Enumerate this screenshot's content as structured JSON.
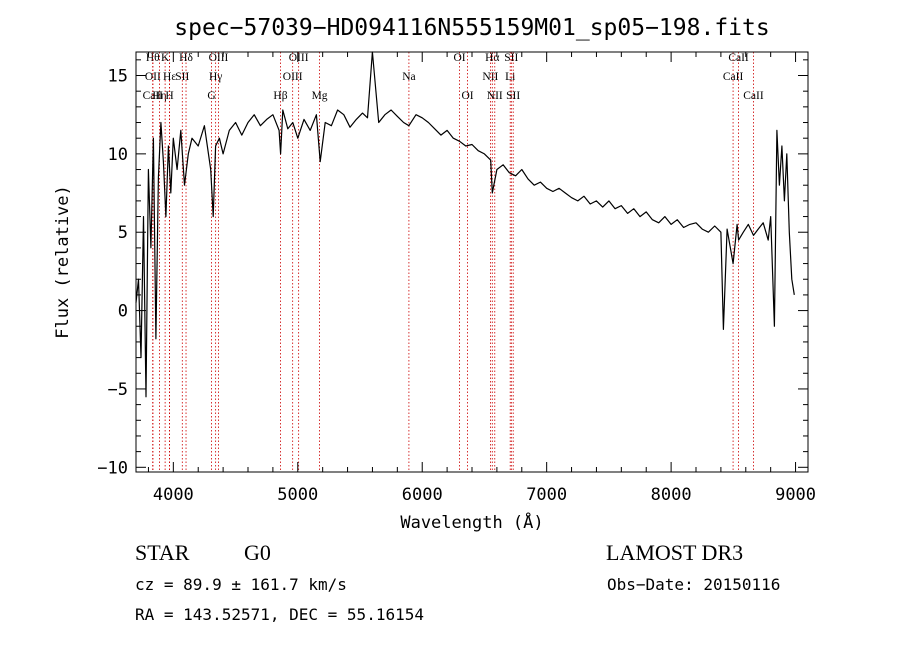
{
  "chart_data": {
    "type": "line",
    "title": "spec−57039−HD094116N555159M01_sp05−198.fits",
    "xlabel": "Wavelength (Å)",
    "ylabel": "Flux (relative)",
    "xlim": [
      3700,
      9100
    ],
    "ylim": [
      -10.3,
      16.5
    ],
    "xticks": [
      4000,
      5000,
      6000,
      7000,
      8000,
      9000
    ],
    "yticks": [
      -10,
      -5,
      0,
      5,
      10,
      15
    ],
    "ytick_labels": [
      "−10",
      "−5",
      "0",
      "5",
      "10",
      "15"
    ],
    "grid": false,
    "series": [
      {
        "name": "flux",
        "x": [
          3700,
          3720,
          3740,
          3760,
          3780,
          3800,
          3820,
          3840,
          3860,
          3880,
          3900,
          3920,
          3940,
          3960,
          3980,
          4000,
          4030,
          4060,
          4090,
          4120,
          4150,
          4200,
          4250,
          4300,
          4320,
          4340,
          4370,
          4400,
          4450,
          4500,
          4550,
          4600,
          4650,
          4700,
          4750,
          4800,
          4850,
          4862,
          4880,
          4920,
          4960,
          5000,
          5050,
          5100,
          5150,
          5180,
          5220,
          5270,
          5320,
          5370,
          5420,
          5470,
          5520,
          5560,
          5600,
          5650,
          5700,
          5750,
          5800,
          5850,
          5893,
          5950,
          6000,
          6050,
          6100,
          6150,
          6200,
          6250,
          6300,
          6350,
          6400,
          6450,
          6500,
          6550,
          6563,
          6600,
          6650,
          6700,
          6750,
          6800,
          6850,
          6900,
          6950,
          7000,
          7050,
          7100,
          7150,
          7200,
          7250,
          7300,
          7350,
          7400,
          7450,
          7500,
          7550,
          7600,
          7650,
          7700,
          7750,
          7800,
          7850,
          7900,
          7950,
          8000,
          8050,
          8100,
          8150,
          8200,
          8250,
          8300,
          8350,
          8400,
          8420,
          8450,
          8498,
          8530,
          8542,
          8580,
          8620,
          8662,
          8700,
          8740,
          8780,
          8800,
          8830,
          8850,
          8870,
          8890,
          8910,
          8930,
          8950,
          8970,
          8990
        ],
        "y": [
          0.5,
          2.0,
          -3.0,
          6.0,
          -5.5,
          9.0,
          4.0,
          11.0,
          -1.8,
          8.5,
          12.0,
          9.5,
          6.0,
          10.5,
          7.5,
          11.0,
          9.0,
          11.5,
          8.0,
          10.0,
          11.0,
          10.5,
          11.8,
          9.0,
          6.0,
          10.5,
          11.0,
          10.0,
          11.5,
          12.0,
          11.2,
          12.0,
          12.5,
          11.8,
          12.2,
          12.5,
          11.5,
          10.0,
          12.8,
          11.6,
          12.0,
          11.0,
          12.2,
          11.5,
          12.5,
          9.5,
          12.0,
          11.8,
          12.8,
          12.5,
          11.7,
          12.2,
          12.6,
          12.3,
          16.5,
          12.0,
          12.5,
          12.8,
          12.4,
          12.0,
          11.8,
          12.5,
          12.3,
          12.0,
          11.6,
          11.2,
          11.5,
          11.0,
          10.8,
          10.5,
          10.6,
          10.2,
          10.0,
          9.6,
          7.5,
          9.0,
          9.3,
          8.8,
          8.6,
          9.0,
          8.4,
          8.0,
          8.2,
          7.8,
          7.6,
          7.8,
          7.5,
          7.2,
          7.0,
          7.3,
          6.8,
          7.0,
          6.6,
          7.0,
          6.5,
          6.7,
          6.2,
          6.5,
          6.0,
          6.3,
          5.8,
          5.6,
          6.0,
          5.5,
          5.8,
          5.3,
          5.5,
          5.6,
          5.2,
          5.0,
          5.4,
          5.0,
          -1.2,
          5.2,
          3.0,
          5.5,
          4.5,
          5.0,
          5.5,
          4.8,
          5.2,
          5.6,
          4.5,
          6.0,
          -1.0,
          11.5,
          8.0,
          10.5,
          7.0,
          10.0,
          5.0,
          2.0,
          1.0
        ]
      }
    ],
    "lines": [
      {
        "wave": 3835,
        "label": "Hθ",
        "row": 0
      },
      {
        "wave": 3835,
        "label": "OII",
        "row": 1
      },
      {
        "wave": 3835,
        "label": "CaII",
        "row": 2
      },
      {
        "wave": 3889,
        "label": "Hη",
        "row": 2
      },
      {
        "wave": 3934,
        "label": "K",
        "row": 0
      },
      {
        "wave": 3969,
        "label": "H",
        "row": 2
      },
      {
        "wave": 3970,
        "label": "Hε",
        "row": 1
      },
      {
        "wave": 4072,
        "label": "SII",
        "row": 1
      },
      {
        "wave": 4102,
        "label": "Hδ",
        "row": 0
      },
      {
        "wave": 4307,
        "label": "G",
        "row": 2
      },
      {
        "wave": 4340,
        "label": "Hγ",
        "row": 1
      },
      {
        "wave": 4363,
        "label": "OIII",
        "row": 0
      },
      {
        "wave": 4861,
        "label": "Hβ",
        "row": 2
      },
      {
        "wave": 4959,
        "label": "OIII",
        "row": 1
      },
      {
        "wave": 5007,
        "label": "OIII",
        "row": 0
      },
      {
        "wave": 5175,
        "label": "Mg",
        "row": 2
      },
      {
        "wave": 5893,
        "label": "Na",
        "row": 1
      },
      {
        "wave": 6300,
        "label": "OI",
        "row": 0
      },
      {
        "wave": 6364,
        "label": "OI",
        "row": 2
      },
      {
        "wave": 6548,
        "label": "NII",
        "row": 1
      },
      {
        "wave": 6563,
        "label": "Hα",
        "row": 0
      },
      {
        "wave": 6583,
        "label": "NII",
        "row": 2
      },
      {
        "wave": 6707,
        "label": "Li",
        "row": 1
      },
      {
        "wave": 6716,
        "label": "SII",
        "row": 0
      },
      {
        "wave": 6731,
        "label": "SII",
        "row": 2
      },
      {
        "wave": 8498,
        "label": "CaII",
        "row": 1
      },
      {
        "wave": 8542,
        "label": "CaII",
        "row": 0
      },
      {
        "wave": 8662,
        "label": "CaII",
        "row": 2
      }
    ]
  },
  "info": {
    "object_type": "STAR",
    "subclass": "G0",
    "survey": "LAMOST DR3",
    "redshift": "cz = 89.9 ± 161.7 km/s",
    "obs_date": "Obs−Date: 20150116",
    "coords": "RA = 143.52571, DEC =  55.16154"
  },
  "colors": {
    "spectrum": "#000000",
    "line_marker": "#cc0000",
    "axis": "#000000"
  }
}
